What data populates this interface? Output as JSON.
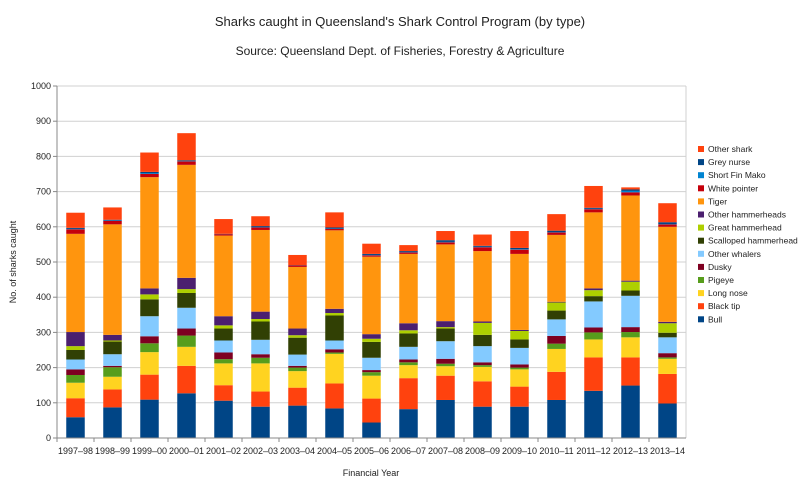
{
  "chart_data": {
    "type": "bar",
    "stacked": true,
    "title": "Sharks caught in Queensland's Shark Control Program (by type)",
    "subtitle": "Source: Queensland Dept. of Fisheries, Forestry & Agriculture",
    "xlabel": "Financial Year",
    "ylabel": "No. of sharks caught",
    "ylim": [
      0,
      1000
    ],
    "yticks": [
      0,
      100,
      200,
      300,
      400,
      500,
      600,
      700,
      800,
      900,
      1000
    ],
    "grid": true,
    "legend_placement": "right",
    "categories": [
      "1997–98",
      "1998–99",
      "1999–00",
      "2000–01",
      "2001–02",
      "2002–03",
      "2003–04",
      "2004–05",
      "2005–06",
      "2006–07",
      "2007–08",
      "2008–09",
      "2009–10",
      "2010–11",
      "2011–12",
      "2012–13",
      "2013–14"
    ],
    "series": [
      {
        "name": "Bull",
        "color": "#004586",
        "values": [
          59,
          87,
          109,
          127,
          106,
          89,
          92,
          84,
          44,
          82,
          108,
          89,
          89,
          108,
          134,
          149,
          98
        ]
      },
      {
        "name": "Black tip",
        "color": "#ff420e",
        "values": [
          54,
          51,
          71,
          78,
          44,
          43,
          51,
          71,
          68,
          88,
          69,
          72,
          57,
          80,
          95,
          80,
          84
        ]
      },
      {
        "name": "Long nose",
        "color": "#ffd320",
        "values": [
          44,
          36,
          64,
          54,
          62,
          80,
          47,
          84,
          65,
          37,
          27,
          41,
          49,
          65,
          51,
          57,
          43
        ]
      },
      {
        "name": "Pigeye",
        "color": "#579d1c",
        "values": [
          22,
          27,
          25,
          32,
          12,
          16,
          10,
          4,
          10,
          8,
          7,
          5,
          5,
          15,
          20,
          15,
          4
        ]
      },
      {
        "name": "Dusky",
        "color": "#7e0021",
        "values": [
          16,
          4,
          20,
          20,
          19,
          10,
          5,
          9,
          6,
          8,
          14,
          8,
          9,
          22,
          14,
          14,
          12
        ]
      },
      {
        "name": "Other whalers",
        "color": "#83caff",
        "values": [
          28,
          33,
          57,
          59,
          34,
          41,
          32,
          25,
          35,
          36,
          50,
          46,
          47,
          47,
          74,
          89,
          45
        ]
      },
      {
        "name": "Scalloped hammerhead",
        "color": "#314004",
        "values": [
          27,
          36,
          48,
          42,
          34,
          52,
          48,
          71,
          45,
          38,
          36,
          32,
          24,
          25,
          15,
          15,
          13
        ]
      },
      {
        "name": "Great hammerhead",
        "color": "#aecf00",
        "values": [
          11,
          3,
          14,
          11,
          9,
          7,
          7,
          7,
          9,
          9,
          4,
          34,
          24,
          23,
          17,
          25,
          27
        ]
      },
      {
        "name": "Other hammerheads",
        "color": "#4b1f6f",
        "values": [
          40,
          16,
          17,
          32,
          26,
          21,
          19,
          12,
          13,
          20,
          17,
          4,
          3,
          2,
          5,
          3,
          4
        ]
      },
      {
        "name": "Tiger",
        "color": "#ff950e",
        "values": [
          279,
          314,
          316,
          321,
          229,
          232,
          175,
          223,
          220,
          197,
          218,
          200,
          216,
          190,
          216,
          242,
          270
        ]
      },
      {
        "name": "White pointer",
        "color": "#c5000b",
        "values": [
          13,
          10,
          9,
          10,
          4,
          7,
          4,
          4,
          4,
          4,
          6,
          11,
          12,
          7,
          9,
          9,
          7
        ]
      },
      {
        "name": "Short Fin Mako",
        "color": "#0084d1",
        "values": [
          1,
          1,
          2,
          1,
          0,
          1,
          0,
          1,
          1,
          1,
          1,
          1,
          1,
          1,
          1,
          4,
          1
        ]
      },
      {
        "name": "Grey nurse",
        "color": "#004586",
        "values": [
          3,
          2,
          4,
          2,
          1,
          3,
          1,
          3,
          3,
          3,
          5,
          3,
          4,
          4,
          3,
          4,
          5
        ]
      },
      {
        "name": "Other shark",
        "color": "#ff420e",
        "values": [
          43,
          35,
          55,
          77,
          42,
          28,
          29,
          43,
          29,
          17,
          26,
          32,
          48,
          47,
          62,
          6,
          54
        ]
      }
    ]
  }
}
